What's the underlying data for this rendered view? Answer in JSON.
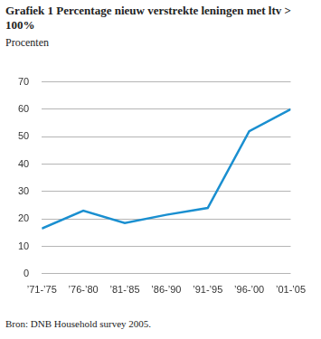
{
  "chart_data": {
    "type": "line",
    "title": "Grafiek 1  Percentage nieuw verstrekte leningen met ltv > 100%",
    "subtitle": "Procenten",
    "source": "Bron: DNB Household survey 2005.",
    "categories": [
      "’71-’75",
      "’76-’80",
      "’81-’85",
      "’86-’90",
      "’91-’95",
      "’96-’00",
      "’01-’05"
    ],
    "values": [
      16.5,
      23,
      18.5,
      21.5,
      24,
      52,
      60
    ],
    "color": "#1a8fd0",
    "ylim": [
      0,
      70
    ],
    "yticks": [
      0,
      10,
      20,
      30,
      40,
      50,
      60,
      70
    ],
    "grid": true
  }
}
